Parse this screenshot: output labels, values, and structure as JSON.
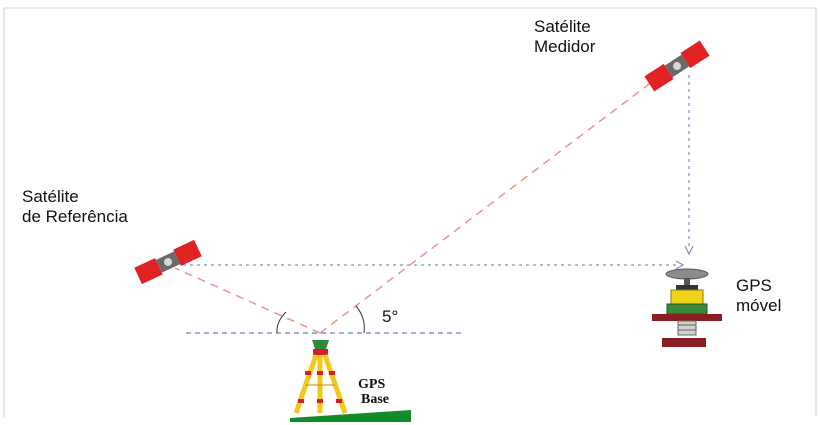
{
  "labels": {
    "measuring_satellite": [
      "Satélite",
      "Medidor"
    ],
    "reference_satellite": [
      "Satélite",
      "de Referência"
    ],
    "mobile_gps": [
      "GPS",
      "móvel"
    ],
    "base_gps": [
      "GPS",
      "Base"
    ],
    "elevation_angle": "5°"
  },
  "colors": {
    "satellite_body": "#e02222",
    "satellite_core": "#6a6a6a",
    "satellite_ray": "#f08a8a",
    "reference_link": "#7f8fb8",
    "horizon_line": "#6c7fb0",
    "mobile_dish": "#8c8c8c",
    "mobile_unit": "#f1d21a",
    "mobile_plate": "#8a1e22",
    "mobile_housing": "#3a8a3a",
    "tripod_leg": "#f3c81a",
    "tripod_mark": "#d42020",
    "ground": "#138a2c"
  }
}
